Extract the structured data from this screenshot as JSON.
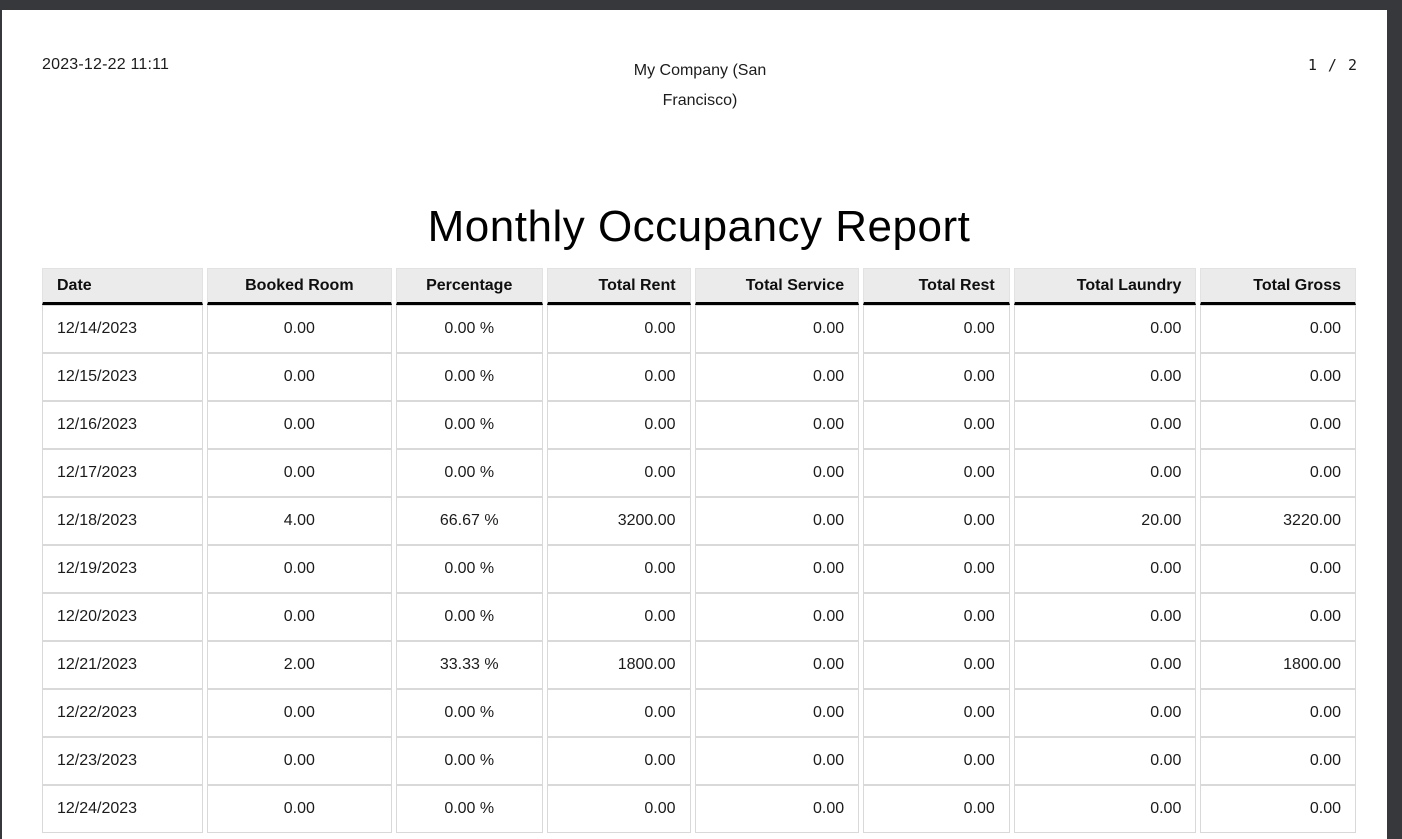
{
  "page": {
    "printed_at": "2023-12-22 11:11",
    "company": "My Company (San Francisco)",
    "pager": "1 / 2"
  },
  "report": {
    "title": "Monthly Occupancy Report"
  },
  "table": {
    "columns": [
      "Date",
      "Booked Room",
      "Percentage",
      "Total Rent",
      "Total Service",
      "Total Rest",
      "Total Laundry",
      "Total Gross"
    ],
    "rows": [
      [
        "12/14/2023",
        "0.00",
        "0.00 %",
        "0.00",
        "0.00",
        "0.00",
        "0.00",
        "0.00"
      ],
      [
        "12/15/2023",
        "0.00",
        "0.00 %",
        "0.00",
        "0.00",
        "0.00",
        "0.00",
        "0.00"
      ],
      [
        "12/16/2023",
        "0.00",
        "0.00 %",
        "0.00",
        "0.00",
        "0.00",
        "0.00",
        "0.00"
      ],
      [
        "12/17/2023",
        "0.00",
        "0.00 %",
        "0.00",
        "0.00",
        "0.00",
        "0.00",
        "0.00"
      ],
      [
        "12/18/2023",
        "4.00",
        "66.67 %",
        "3200.00",
        "0.00",
        "0.00",
        "20.00",
        "3220.00"
      ],
      [
        "12/19/2023",
        "0.00",
        "0.00 %",
        "0.00",
        "0.00",
        "0.00",
        "0.00",
        "0.00"
      ],
      [
        "12/20/2023",
        "0.00",
        "0.00 %",
        "0.00",
        "0.00",
        "0.00",
        "0.00",
        "0.00"
      ],
      [
        "12/21/2023",
        "2.00",
        "33.33 %",
        "1800.00",
        "0.00",
        "0.00",
        "0.00",
        "1800.00"
      ],
      [
        "12/22/2023",
        "0.00",
        "0.00 %",
        "0.00",
        "0.00",
        "0.00",
        "0.00",
        "0.00"
      ],
      [
        "12/23/2023",
        "0.00",
        "0.00 %",
        "0.00",
        "0.00",
        "0.00",
        "0.00",
        "0.00"
      ],
      [
        "12/24/2023",
        "0.00",
        "0.00 %",
        "0.00",
        "0.00",
        "0.00",
        "0.00",
        "0.00"
      ]
    ]
  },
  "colors": {
    "viewer_chrome": "#36383b",
    "page_background": "#ffffff",
    "header_row_background": "#ebebeb",
    "cell_border": "#d9d9d9",
    "header_rule": "#000000",
    "text": "#1b1b1b"
  }
}
